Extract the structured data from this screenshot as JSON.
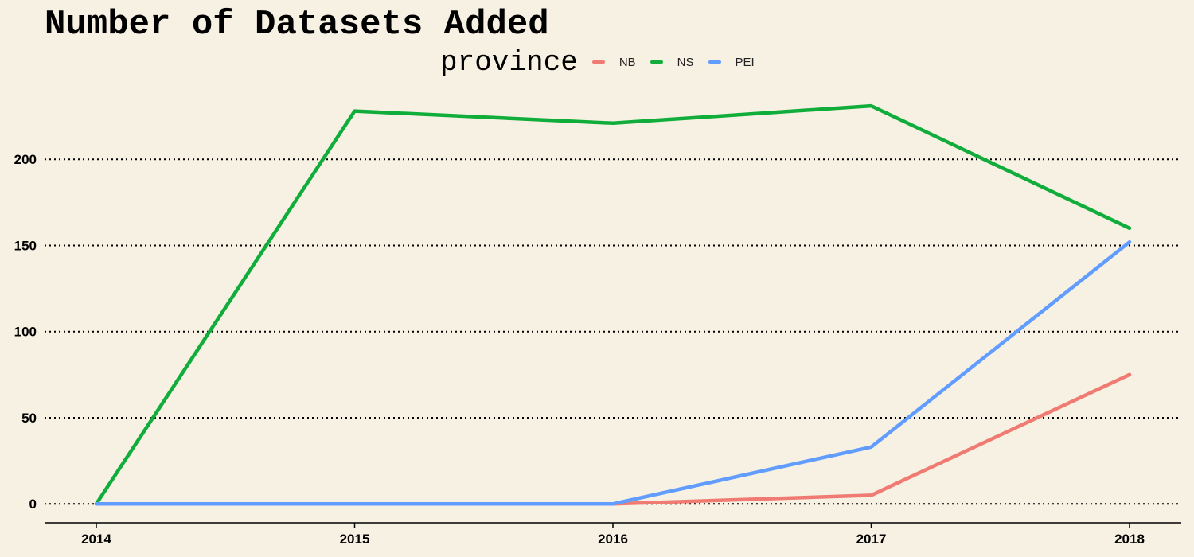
{
  "chart_data": {
    "type": "line",
    "title": "Number of Datasets Added",
    "xlabel": "",
    "ylabel": "",
    "legend_title": "province",
    "legend_position": "top",
    "grid": "horizontal dotted",
    "x": [
      "2014",
      "2015",
      "2016",
      "2017",
      "2018"
    ],
    "y_ticks": [
      0,
      50,
      100,
      150,
      200
    ],
    "ylim": [
      -11,
      244
    ],
    "series": [
      {
        "name": "NB",
        "color": "#f07b73",
        "values": [
          0,
          0,
          0,
          5,
          75
        ]
      },
      {
        "name": "NS",
        "color": "#10ad3b",
        "values": [
          0,
          228,
          221,
          231,
          160
        ]
      },
      {
        "name": "PEI",
        "color": "#619cff",
        "values": [
          0,
          0,
          0,
          33,
          152
        ]
      }
    ]
  }
}
